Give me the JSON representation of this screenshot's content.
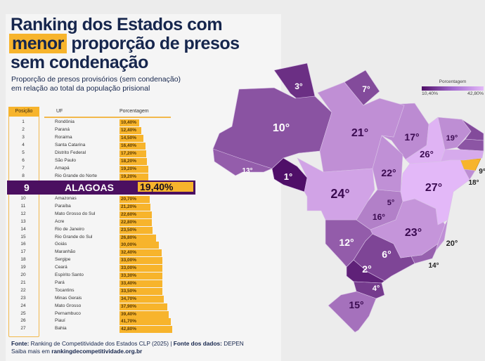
{
  "title": {
    "line1": "Ranking dos Estados com",
    "highlight": "menor",
    "line2_rest": " proporção de presos",
    "line3": "sem condenação"
  },
  "subtitle": {
    "line1": "Proporção de presos provisórios (sem condenação)",
    "line2": "em relação ao total da população prisional"
  },
  "table": {
    "headers": {
      "position": "Posição",
      "uf": "UF",
      "percent": "Porcentagem"
    },
    "highlight": {
      "position": "9",
      "uf": "ALAGOAS",
      "value": "19,40%"
    }
  },
  "legend": {
    "title": "Porcentagem",
    "min": "10,40%",
    "max": "42,80%",
    "color_min": "#4f0f68",
    "color_max": "#e3b8f8"
  },
  "highlight_color": "#f7b42c",
  "source": {
    "label1": "Fonte:",
    "text1": " Ranking de Competitividade dos Estados CLP (2025) | ",
    "label2": "Fonte dos dados:",
    "text2": " DEPEN",
    "more": "Saiba mais em ",
    "link": "rankingdecompetitividade.org.br"
  },
  "chart_data": {
    "type": "table",
    "title": "Ranking dos Estados com menor proporção de presos sem condenação",
    "columns": [
      "Posição",
      "UF",
      "Porcentagem"
    ],
    "rows": [
      {
        "rank": 1,
        "uf": "Rondônia",
        "value": 10.4,
        "label": "10,40%"
      },
      {
        "rank": 2,
        "uf": "Paraná",
        "value": 12.4,
        "label": "12,40%"
      },
      {
        "rank": 3,
        "uf": "Roraima",
        "value": 14.5,
        "label": "14,50%"
      },
      {
        "rank": 4,
        "uf": "Santa Catarina",
        "value": 16.4,
        "label": "16,40%"
      },
      {
        "rank": 5,
        "uf": "Distrito Federal",
        "value": 17.2,
        "label": "17,20%"
      },
      {
        "rank": 6,
        "uf": "São Paulo",
        "value": 18.2,
        "label": "18,20%"
      },
      {
        "rank": 7,
        "uf": "Amapá",
        "value": 19.2,
        "label": "19,20%"
      },
      {
        "rank": 8,
        "uf": "Rio Grande do Norte",
        "value": 19.2,
        "label": "19,20%"
      },
      {
        "rank": 9,
        "uf": "Alagoas",
        "value": 19.4,
        "label": "19,40%"
      },
      {
        "rank": 10,
        "uf": "Amazonas",
        "value": 20.7,
        "label": "20,70%"
      },
      {
        "rank": 11,
        "uf": "Paraíba",
        "value": 21.2,
        "label": "21,20%"
      },
      {
        "rank": 12,
        "uf": "Mato Grosso do Sul",
        "value": 22.6,
        "label": "22,60%"
      },
      {
        "rank": 13,
        "uf": "Acre",
        "value": 22.8,
        "label": "22,80%"
      },
      {
        "rank": 14,
        "uf": "Rio de Janeiro",
        "value": 23.5,
        "label": "23,50%"
      },
      {
        "rank": 15,
        "uf": "Rio Grande do Sul",
        "value": 26.8,
        "label": "26,80%"
      },
      {
        "rank": 16,
        "uf": "Goiás",
        "value": 30.0,
        "label": "30,00%"
      },
      {
        "rank": 17,
        "uf": "Maranhão",
        "value": 32.4,
        "label": "32,40%"
      },
      {
        "rank": 18,
        "uf": "Sergipe",
        "value": 33.0,
        "label": "33,00%"
      },
      {
        "rank": 19,
        "uf": "Ceará",
        "value": 33.0,
        "label": "33,00%"
      },
      {
        "rank": 20,
        "uf": "Espírito Santo",
        "value": 33.3,
        "label": "33,30%"
      },
      {
        "rank": 21,
        "uf": "Pará",
        "value": 33.4,
        "label": "33,40%"
      },
      {
        "rank": 22,
        "uf": "Tocantins",
        "value": 33.5,
        "label": "33,50%"
      },
      {
        "rank": 23,
        "uf": "Minas Gerais",
        "value": 34.7,
        "label": "34,70%"
      },
      {
        "rank": 24,
        "uf": "Mato Grosso",
        "value": 37.9,
        "label": "37,90%"
      },
      {
        "rank": 25,
        "uf": "Pernambuco",
        "value": 39.4,
        "label": "39,40%"
      },
      {
        "rank": 26,
        "uf": "Piauí",
        "value": 41.7,
        "label": "41,70%"
      },
      {
        "rank": 27,
        "uf": "Bahia",
        "value": 42.8,
        "label": "42,80%"
      }
    ],
    "map_labels_suffix": "°"
  }
}
